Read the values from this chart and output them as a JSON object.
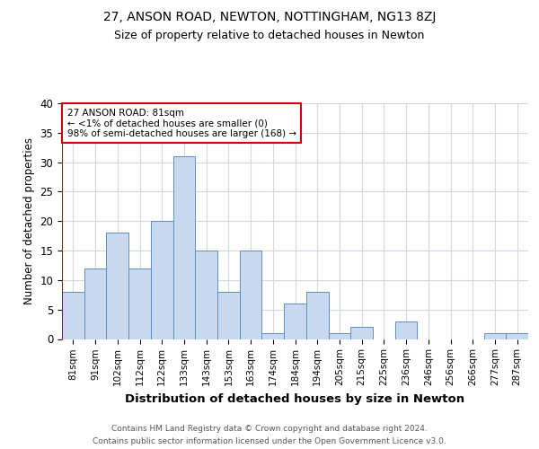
{
  "title1": "27, ANSON ROAD, NEWTON, NOTTINGHAM, NG13 8ZJ",
  "title2": "Size of property relative to detached houses in Newton",
  "xlabel": "Distribution of detached houses by size in Newton",
  "ylabel": "Number of detached properties",
  "footer1": "Contains HM Land Registry data © Crown copyright and database right 2024.",
  "footer2": "Contains public sector information licensed under the Open Government Licence v3.0.",
  "annotation_line1": "27 ANSON ROAD: 81sqm",
  "annotation_line2": "← <1% of detached houses are smaller (0)",
  "annotation_line3": "98% of semi-detached houses are larger (168) →",
  "categories": [
    "81sqm",
    "91sqm",
    "102sqm",
    "112sqm",
    "122sqm",
    "133sqm",
    "143sqm",
    "153sqm",
    "163sqm",
    "174sqm",
    "184sqm",
    "194sqm",
    "205sqm",
    "215sqm",
    "225sqm",
    "236sqm",
    "246sqm",
    "256sqm",
    "266sqm",
    "277sqm",
    "287sqm"
  ],
  "values": [
    8,
    12,
    18,
    12,
    20,
    31,
    15,
    8,
    15,
    1,
    6,
    8,
    1,
    2,
    0,
    3,
    0,
    0,
    0,
    1,
    1
  ],
  "bar_color": "#c9d9ef",
  "bar_edge_color": "#5b8fc9",
  "annotation_box_edge": "#cc0000",
  "ylim": [
    0,
    40
  ],
  "yticks": [
    0,
    5,
    10,
    15,
    20,
    25,
    30,
    35,
    40
  ],
  "bg_color": "#ffffff",
  "grid_color": "#d0d8e4"
}
